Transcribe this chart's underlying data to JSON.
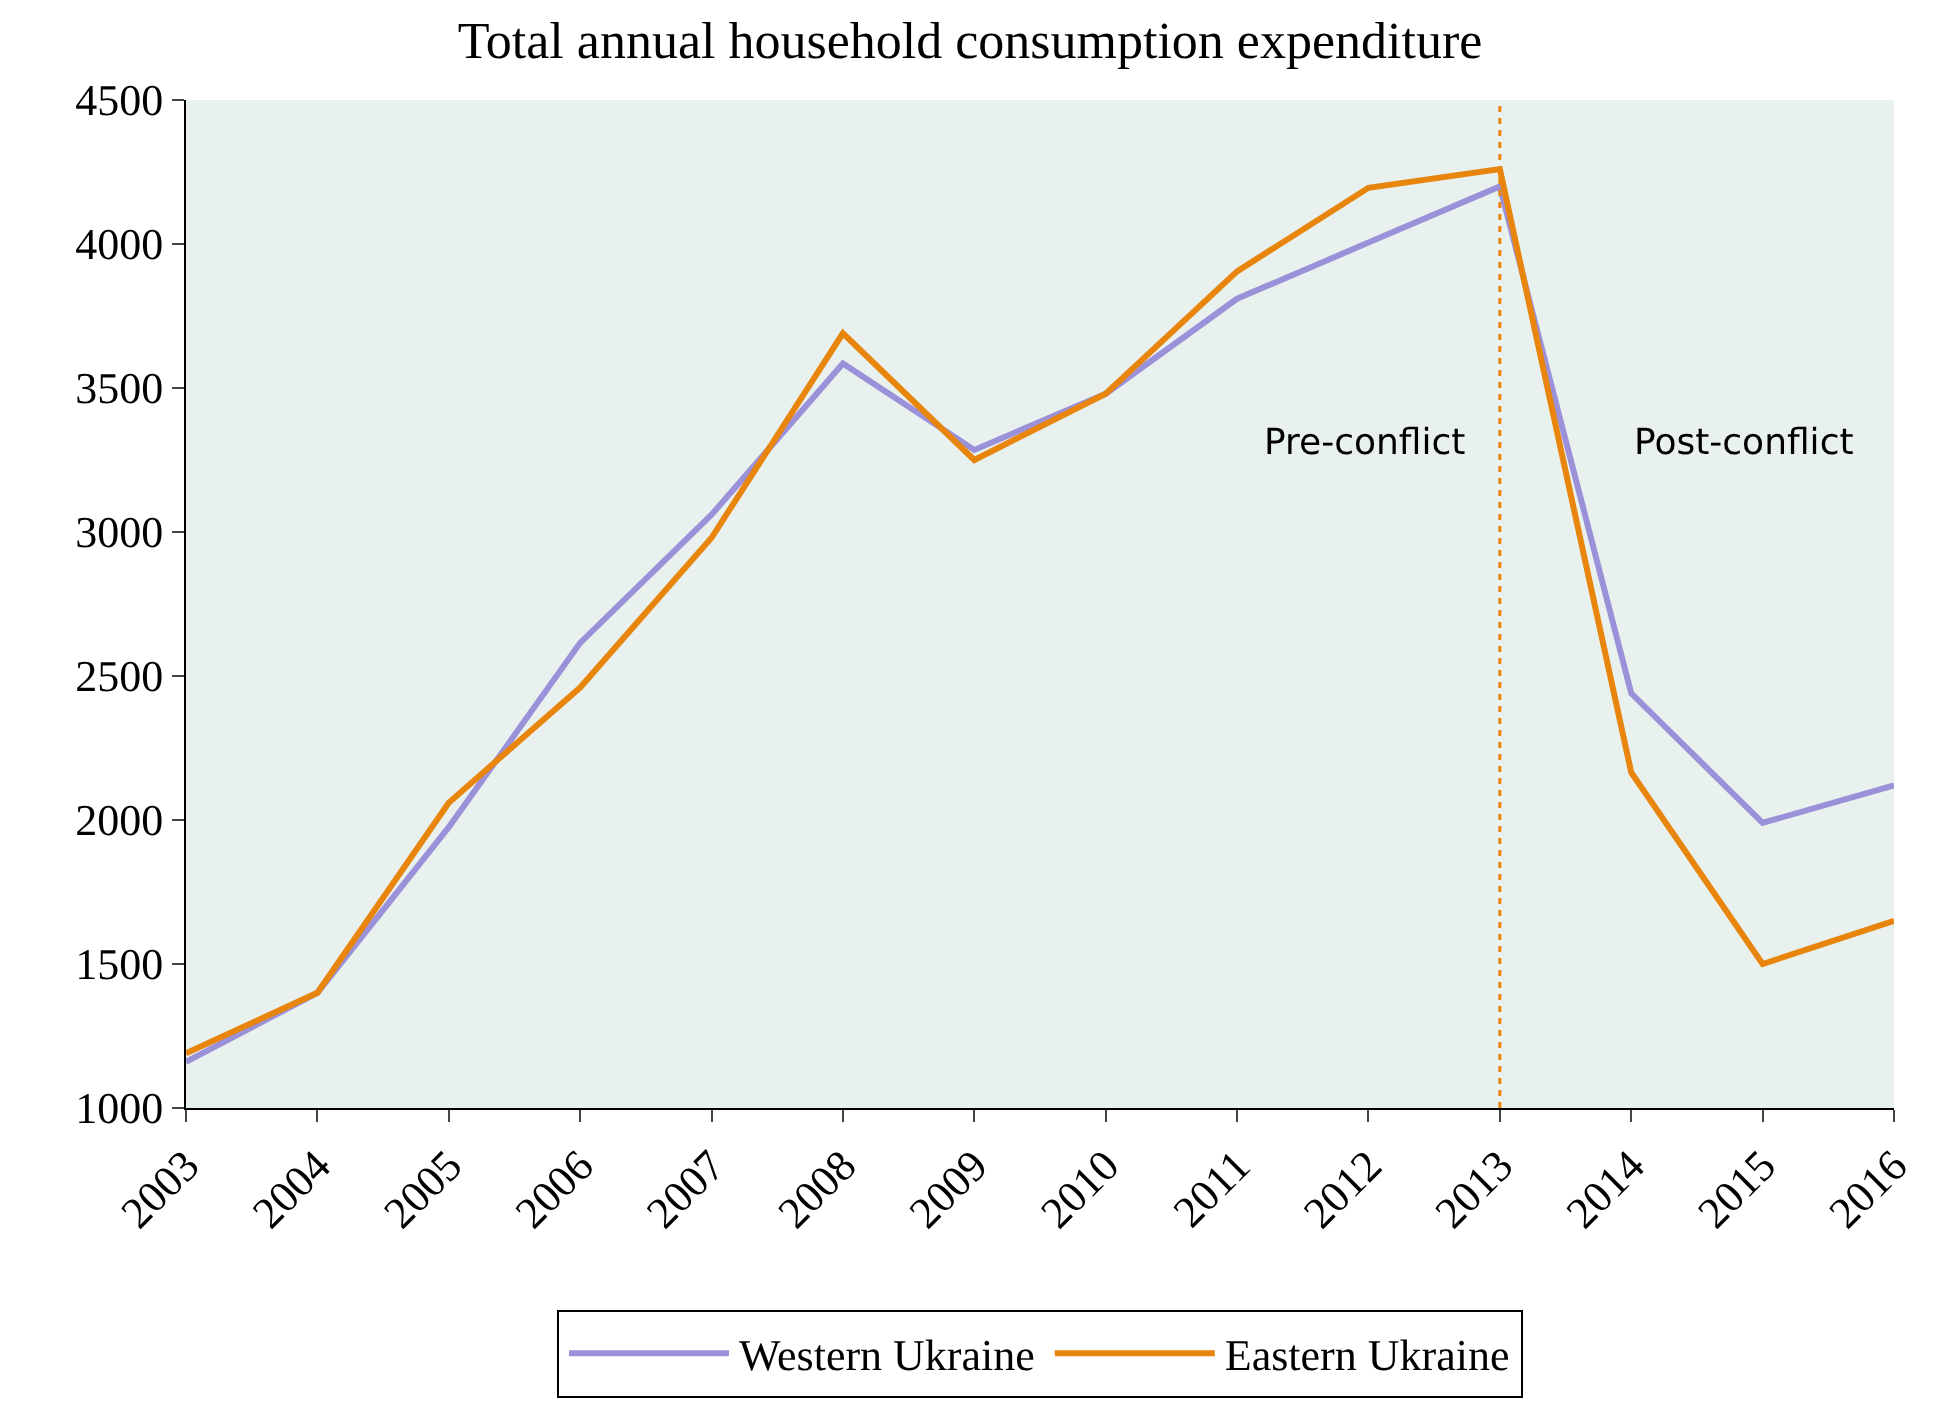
{
  "chart_data": {
    "type": "line",
    "title": "Total annual household consumption expenditure",
    "x": [
      2003,
      2004,
      2005,
      2006,
      2007,
      2008,
      2009,
      2010,
      2011,
      2012,
      2013,
      2014,
      2015,
      2016
    ],
    "series": [
      {
        "name": "Western Ukraine",
        "color": "#9a91d8",
        "values": [
          1160,
          1400,
          1975,
          2615,
          3060,
          3585,
          3285,
          3480,
          3810,
          4005,
          4200,
          2440,
          1990,
          2120
        ]
      },
      {
        "name": "Eastern Ukraine",
        "color": "#e8850c",
        "values": [
          1190,
          1400,
          2060,
          2460,
          2980,
          3690,
          3250,
          3480,
          3905,
          4195,
          4260,
          2165,
          1500,
          1650
        ]
      }
    ],
    "xlim": [
      2003,
      2016
    ],
    "xticks": [
      2003,
      2004,
      2005,
      2006,
      2007,
      2008,
      2009,
      2010,
      2011,
      2012,
      2013,
      2014,
      2015,
      2016
    ],
    "ylim": [
      1000,
      4500
    ],
    "yticks": [
      1000,
      1500,
      2000,
      2500,
      3000,
      3500,
      4000,
      4500
    ],
    "ref_lines": [
      {
        "axis": "x",
        "value": 2013,
        "color": "#e8850c",
        "line_style": "dotted"
      }
    ],
    "annotations": [
      "Pre-conflict",
      "Post-conflict"
    ],
    "grid": false,
    "legend": "bottom",
    "marker": "none",
    "line_style": "solid"
  }
}
